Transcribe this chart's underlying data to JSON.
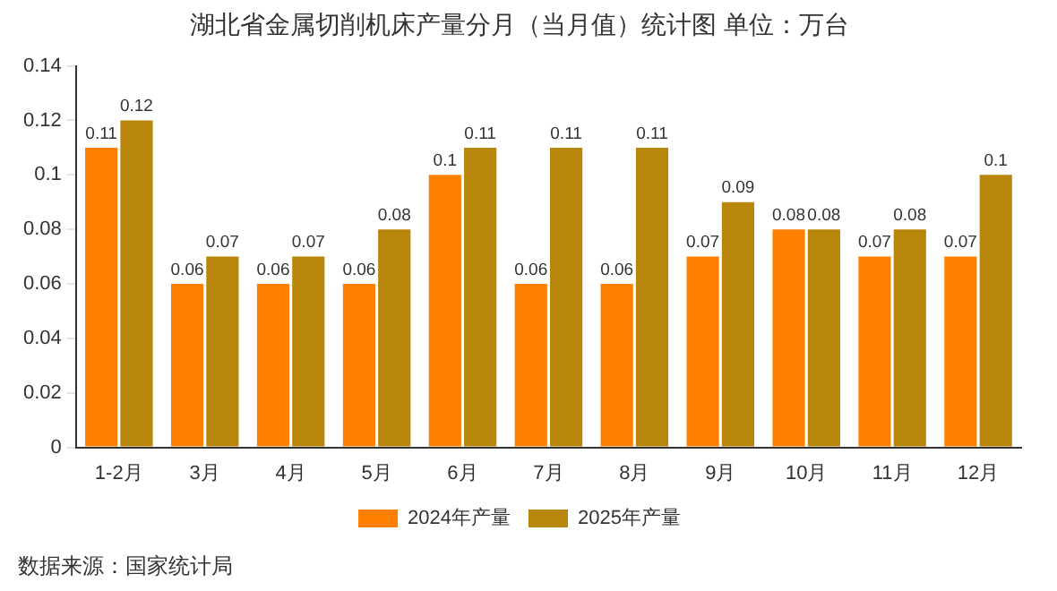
{
  "chart_data": {
    "type": "bar",
    "title": "湖北省金属切削机床产量分月（当月值）统计图 单位：万台",
    "categories": [
      "1-2月",
      "3月",
      "4月",
      "5月",
      "6月",
      "7月",
      "8月",
      "9月",
      "10月",
      "11月",
      "12月"
    ],
    "series": [
      {
        "name": "2024年产量",
        "color": "#ff8000",
        "values": [
          0.11,
          0.06,
          0.06,
          0.06,
          0.1,
          0.06,
          0.06,
          0.07,
          0.08,
          0.07,
          0.07
        ]
      },
      {
        "name": "2025年产量",
        "color": "#b8860b",
        "values": [
          0.12,
          0.07,
          0.07,
          0.08,
          0.11,
          0.11,
          0.11,
          0.09,
          0.08,
          0.08,
          0.1
        ]
      }
    ],
    "ylim": [
      0,
      0.14
    ],
    "yticks": [
      0,
      0.02,
      0.04,
      0.06,
      0.08,
      0.1,
      0.12,
      0.14
    ],
    "grid": false,
    "legend": "bottom",
    "data_labels": true,
    "annotations": [
      "数据来源：国家统计局"
    ]
  }
}
